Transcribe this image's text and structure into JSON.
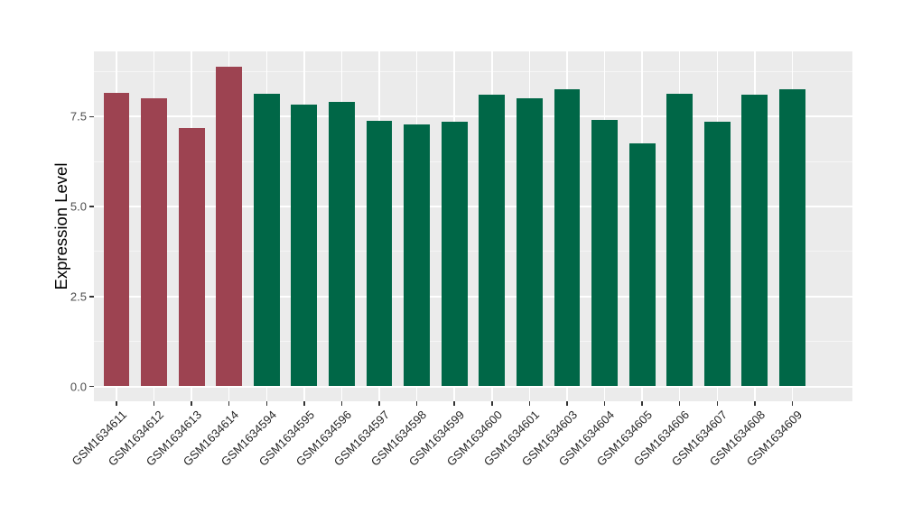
{
  "chart_data": {
    "type": "bar",
    "title": "",
    "xlabel": "",
    "ylabel": "Expression Level",
    "categories": [
      "GSM1634611",
      "GSM1634612",
      "GSM1634613",
      "GSM1634614",
      "GSM1634594",
      "GSM1634595",
      "GSM1634596",
      "GSM1634597",
      "GSM1634598",
      "GSM1634599",
      "GSM1634600",
      "GSM1634601",
      "GSM1634603",
      "GSM1634604",
      "GSM1634605",
      "GSM1634606",
      "GSM1634607",
      "GSM1634608",
      "GSM1634609"
    ],
    "values": [
      8.15,
      8.0,
      7.17,
      8.89,
      8.14,
      7.83,
      7.91,
      7.38,
      7.28,
      7.36,
      8.12,
      8.02,
      8.25,
      7.4,
      6.75,
      8.13,
      7.37,
      8.11,
      8.25
    ],
    "bar_colors": [
      "#9D4351",
      "#9D4351",
      "#9D4351",
      "#9D4351",
      "#006747",
      "#006747",
      "#006747",
      "#006747",
      "#006747",
      "#006747",
      "#006747",
      "#006747",
      "#006747",
      "#006747",
      "#006747",
      "#006747",
      "#006747",
      "#006747",
      "#006747"
    ],
    "yticks": [
      0,
      2.5,
      5,
      7.5
    ],
    "ytick_labels": [
      "0.0",
      "2.5",
      "5.0",
      "7.5"
    ],
    "ylim": [
      -0.43,
      9.31
    ],
    "grid": true,
    "legend_position": "none",
    "panel_background": "#EBEBEB",
    "gridline_color": "#FFFFFF",
    "axis_text_color": "#4D4D4D"
  }
}
